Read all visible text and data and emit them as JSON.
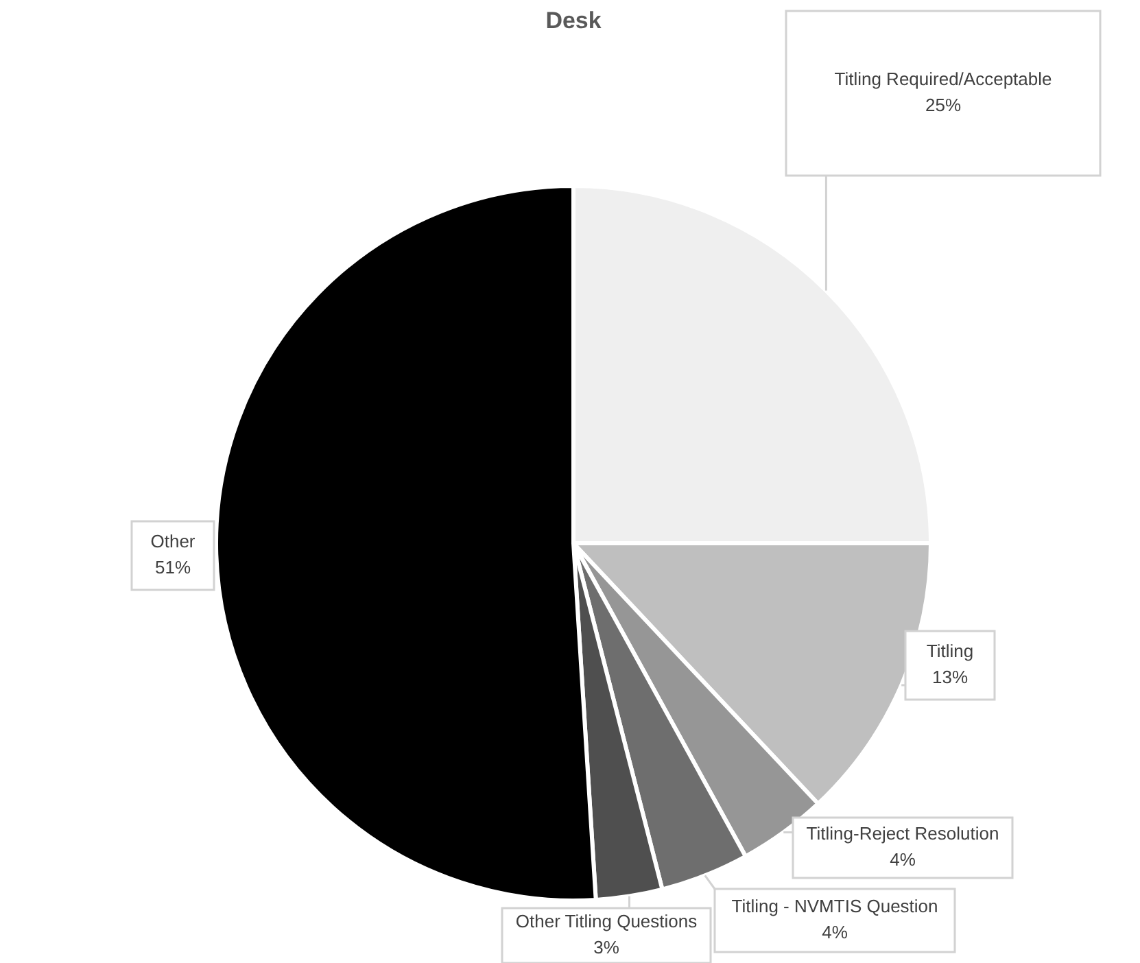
{
  "chart_data": {
    "type": "pie",
    "title": "Desk",
    "categories": [
      "Titling Required/Acceptable",
      "Titling",
      "Titling-Reject Resolution",
      "Titling - NVMTIS Question",
      "Other Titling Questions",
      "Other"
    ],
    "values": [
      25,
      13,
      4,
      4,
      3,
      51
    ],
    "value_labels": [
      "25%",
      "13%",
      "4%",
      "4%",
      "3%",
      "51%"
    ],
    "colors": [
      "#efefef",
      "#bfbfbf",
      "#969696",
      "#6e6e6e",
      "#4f4f4f",
      "#000000"
    ],
    "legend": false
  }
}
